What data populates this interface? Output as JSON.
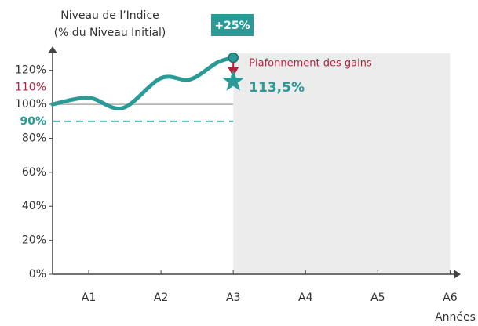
{
  "chart_data": {
    "type": "line",
    "y_axis_title": [
      "Niveau de l’Indice",
      "(% du Niveau Initial)"
    ],
    "x_axis_label": "Années",
    "annotation_box": "+25%",
    "cap_text": "Plafonnement des gains",
    "series": [
      {
        "name": null,
        "color": "#2a9a96",
        "x": [
          0.5,
          1,
          1.47,
          2,
          2.4,
          2.78,
          3
        ],
        "values": [
          100,
          103.8,
          97.8,
          115.4,
          114.6,
          124.6,
          127.4
        ]
      }
    ],
    "cap": {
      "x": 3,
      "value": 113.5,
      "label": "113,5%",
      "color": "#b81f3b"
    },
    "xlim": [
      0.5,
      6.05
    ],
    "ylim": [
      0,
      130
    ],
    "xticks": [
      {
        "value": 1,
        "label": "A1"
      },
      {
        "value": 2,
        "label": "A2"
      },
      {
        "value": 3,
        "label": "A3"
      },
      {
        "value": 4,
        "label": "A4"
      },
      {
        "value": 5,
        "label": "A5"
      },
      {
        "value": 6,
        "label": "A6"
      }
    ],
    "yticks": [
      {
        "value": 0,
        "label": "0%"
      },
      {
        "value": 20,
        "label": "20%"
      },
      {
        "value": 40,
        "label": "40%"
      },
      {
        "value": 60,
        "label": "60%"
      },
      {
        "value": 80,
        "label": "80%"
      },
      {
        "value": 100,
        "label": "100%"
      },
      {
        "value": 120,
        "label": "120%"
      }
    ],
    "reference_ticks": [
      {
        "value": 110,
        "label": "110%",
        "color": "#b81f3b"
      },
      {
        "value": 90,
        "label": "90%",
        "color": "#2a9a96"
      }
    ],
    "shaded_region": [
      3,
      6
    ]
  }
}
